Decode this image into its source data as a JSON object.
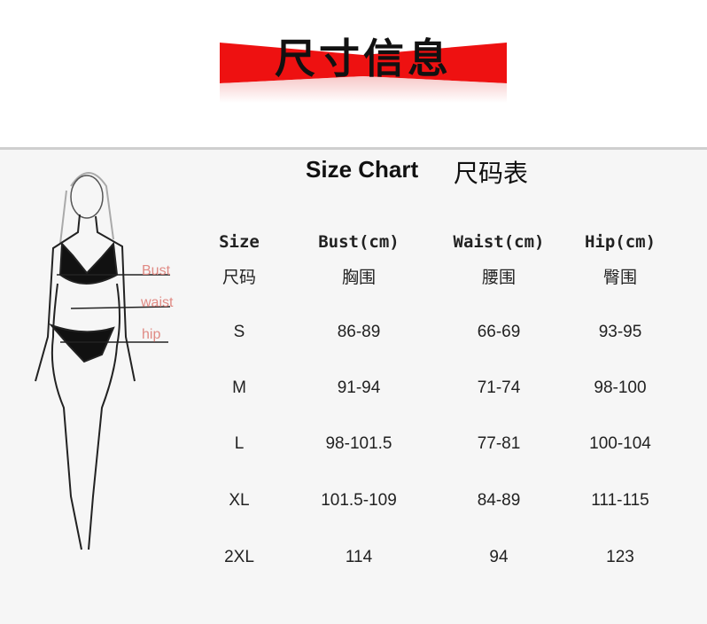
{
  "banner": {
    "title": "尺寸信息",
    "color": "#ee1111"
  },
  "chart": {
    "title": "Size Chart",
    "title_cn": "尺码表",
    "headers": [
      {
        "en": "Size",
        "cn": "尺码"
      },
      {
        "en": "Bust(cm)",
        "cn": "胸围"
      },
      {
        "en": "Waist(cm)",
        "cn": "腰围"
      },
      {
        "en": "Hip(cm)",
        "cn": "臀围"
      }
    ],
    "rows": [
      [
        "S",
        "86-89",
        "66-69",
        "93-95"
      ],
      [
        "M",
        "91-94",
        "71-74",
        "98-100"
      ],
      [
        "L",
        "98-101.5",
        "77-81",
        "100-104"
      ],
      [
        "XL",
        "101.5-109",
        "84-89",
        "111-115"
      ],
      [
        "2XL",
        "114",
        "94",
        "123"
      ]
    ]
  },
  "figure": {
    "labels": {
      "bust": "Bust",
      "waist": "waist",
      "hip": "hip"
    },
    "label_color": "#e08a84"
  }
}
